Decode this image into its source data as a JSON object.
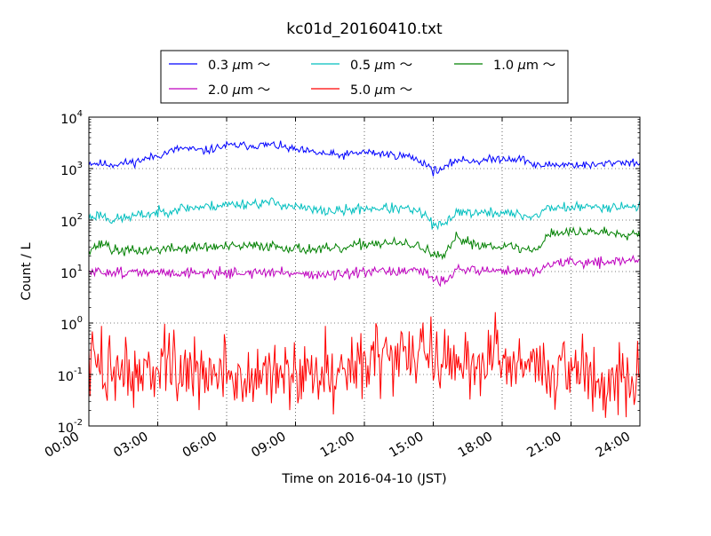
{
  "chart_data": {
    "type": "line",
    "title": "kc01d_20160410.txt",
    "xlabel": "Time on 2016-04-10 (JST)",
    "ylabel": "Count / L",
    "yscale": "log",
    "xlim": [
      "00:00",
      "24:00"
    ],
    "ylim": [
      0.01,
      10000
    ],
    "grid": true,
    "legend_position": "top-center",
    "x_ticks": [
      "00:00",
      "03:00",
      "06:00",
      "09:00",
      "12:00",
      "15:00",
      "18:00",
      "21:00",
      "24:00"
    ],
    "y_ticks": [
      {
        "value": 0.01,
        "base": "10",
        "exp": "-2"
      },
      {
        "value": 0.1,
        "base": "10",
        "exp": "-1"
      },
      {
        "value": 1,
        "base": "10",
        "exp": "0"
      },
      {
        "value": 10,
        "base": "10",
        "exp": "1"
      },
      {
        "value": 100,
        "base": "10",
        "exp": "2"
      },
      {
        "value": 1000,
        "base": "10",
        "exp": "3"
      },
      {
        "value": 10000,
        "base": "10",
        "exp": "4"
      }
    ],
    "series": [
      {
        "name": "0.3 μm ～",
        "name_size": "0.3",
        "name_unit": "μ",
        "name_unit2": "m",
        "name_tail": "～",
        "color": "#0000ff",
        "noise": 0.04,
        "seed": 11,
        "x": [
          "00:00",
          "01:00",
          "02:00",
          "03:00",
          "04:00",
          "05:00",
          "06:00",
          "07:00",
          "08:00",
          "09:00",
          "10:00",
          "11:00",
          "12:00",
          "13:00",
          "14:00",
          "14:45",
          "15:00",
          "15:30",
          "16:00",
          "17:00",
          "18:00",
          "19:00",
          "19:30",
          "20:00",
          "21:00",
          "22:00",
          "23:00",
          "24:00"
        ],
        "y": [
          1300,
          1200,
          1350,
          1800,
          2500,
          2200,
          2800,
          2800,
          2900,
          2300,
          2000,
          1800,
          2100,
          1900,
          1700,
          1200,
          900,
          1000,
          1500,
          1400,
          1600,
          1500,
          1100,
          1200,
          1200,
          1150,
          1350,
          1300
        ]
      },
      {
        "name": "0.5 μm ～",
        "name_size": "0.5",
        "name_unit": "μ",
        "name_unit2": "m",
        "name_tail": "～",
        "color": "#00bfbf",
        "noise": 0.05,
        "seed": 23,
        "x": [
          "00:00",
          "00:30",
          "01:00",
          "02:00",
          "03:00",
          "04:00",
          "05:00",
          "06:00",
          "07:00",
          "08:00",
          "09:00",
          "10:00",
          "11:00",
          "12:00",
          "13:00",
          "14:00",
          "14:45",
          "15:00",
          "15:30",
          "16:00",
          "17:00",
          "18:00",
          "19:00",
          "19:30",
          "20:00",
          "21:00",
          "22:00",
          "23:00",
          "24:00"
        ],
        "y": [
          110,
          130,
          100,
          120,
          140,
          170,
          180,
          200,
          210,
          220,
          180,
          150,
          150,
          170,
          170,
          160,
          120,
          75,
          80,
          150,
          135,
          140,
          120,
          120,
          175,
          175,
          180,
          185,
          185
        ]
      },
      {
        "name": "1.0 μm ～",
        "name_size": "1.0",
        "name_unit": "μ",
        "name_unit2": "m",
        "name_tail": "～",
        "color": "#008000",
        "noise": 0.05,
        "seed": 37,
        "x": [
          "00:00",
          "00:45",
          "01:00",
          "02:00",
          "03:00",
          "04:00",
          "05:00",
          "06:00",
          "07:00",
          "08:00",
          "09:00",
          "10:00",
          "11:00",
          "12:00",
          "13:00",
          "14:00",
          "14:45",
          "15:00",
          "15:30",
          "16:00",
          "17:00",
          "18:00",
          "19:00",
          "19:30",
          "20:00",
          "21:00",
          "22:00",
          "23:00",
          "24:00"
        ],
        "y": [
          28,
          36,
          26,
          25,
          27,
          28,
          30,
          30,
          31,
          32,
          28,
          27,
          27,
          35,
          36,
          33,
          28,
          19,
          20,
          45,
          33,
          32,
          27,
          26,
          55,
          58,
          60,
          56,
          55
        ]
      },
      {
        "name": "2.0 μm ～",
        "name_size": "2.0",
        "name_unit": "μ",
        "name_unit2": "m",
        "name_tail": "～",
        "color": "#bf00bf",
        "noise": 0.05,
        "seed": 51,
        "x": [
          "00:00",
          "01:00",
          "02:00",
          "03:00",
          "04:00",
          "05:00",
          "06:00",
          "07:00",
          "08:00",
          "09:00",
          "10:00",
          "11:00",
          "12:00",
          "13:00",
          "14:00",
          "14:45",
          "15:00",
          "15:30",
          "16:00",
          "17:00",
          "18:00",
          "19:00",
          "19:30",
          "20:00",
          "21:00",
          "22:00",
          "23:00",
          "24:00"
        ],
        "y": [
          9.5,
          10,
          9.5,
          9.5,
          9.5,
          9.5,
          9.5,
          9.5,
          9.5,
          9.5,
          8.5,
          8.5,
          9.5,
          10,
          10,
          9.5,
          7,
          6.8,
          11,
          10.5,
          10.5,
          10,
          9.5,
          14,
          15,
          15,
          16,
          17
        ]
      },
      {
        "name": "5.0 μm ～",
        "name_size": "5.0",
        "name_unit": "μ",
        "name_unit2": "m",
        "name_tail": "～",
        "color": "#ff0000",
        "noise": 0.35,
        "seed": 73,
        "x": [
          "00:00",
          "01:00",
          "02:00",
          "03:00",
          "04:00",
          "05:00",
          "06:00",
          "07:00",
          "08:00",
          "09:00",
          "10:00",
          "11:00",
          "12:00",
          "13:00",
          "14:00",
          "15:00",
          "16:00",
          "17:00",
          "18:00",
          "19:00",
          "20:00",
          "21:00",
          "22:00",
          "23:00",
          "24:00"
        ],
        "y": [
          0.16,
          0.13,
          0.12,
          0.13,
          0.11,
          0.1,
          0.09,
          0.09,
          0.09,
          0.09,
          0.11,
          0.15,
          0.2,
          0.25,
          0.26,
          0.2,
          0.17,
          0.2,
          0.2,
          0.17,
          0.14,
          0.1,
          0.1,
          0.1,
          0.12
        ]
      }
    ]
  }
}
